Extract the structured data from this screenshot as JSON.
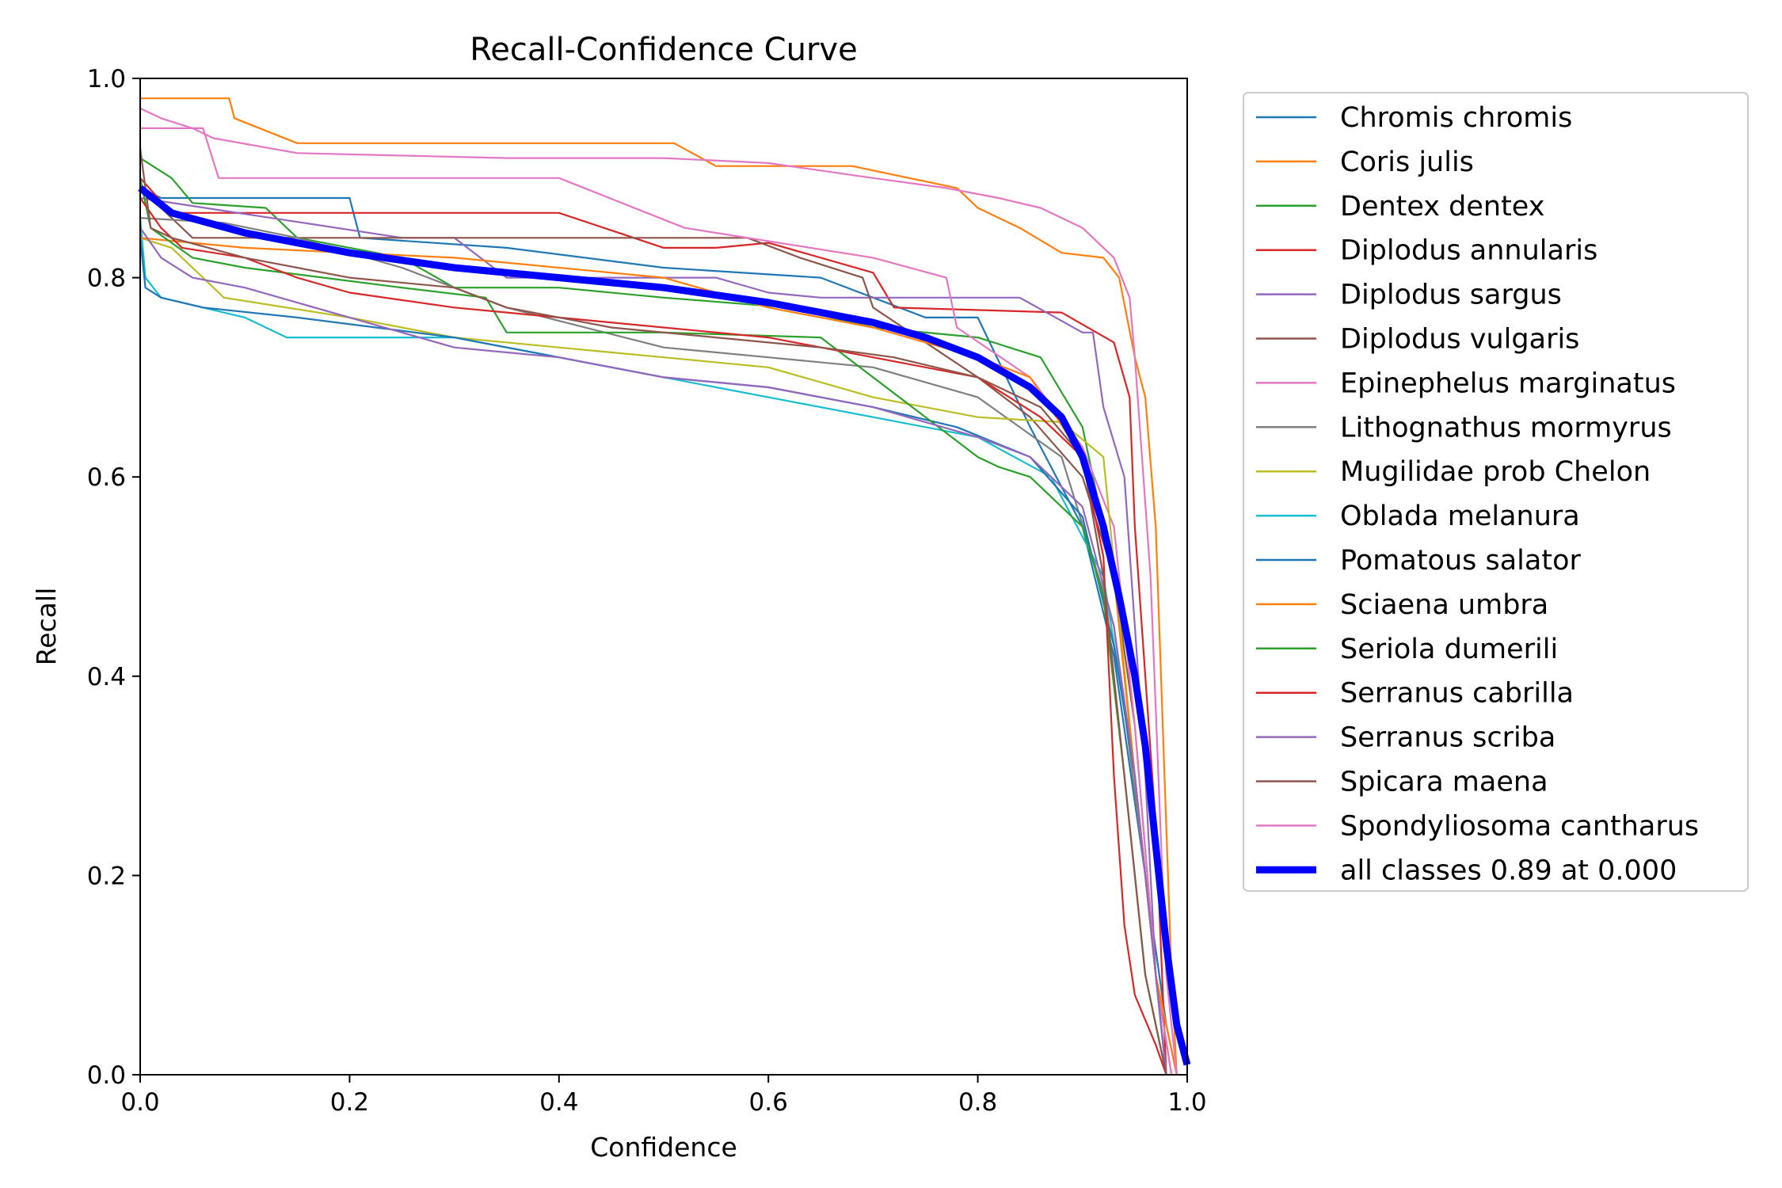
{
  "chart_data": {
    "type": "line",
    "title": "Recall-Confidence Curve",
    "xlabel": "Confidence",
    "ylabel": "Recall",
    "xlim": [
      0,
      1
    ],
    "ylim": [
      0,
      1
    ],
    "xticks": [
      "0.0",
      "0.2",
      "0.4",
      "0.6",
      "0.8",
      "1.0"
    ],
    "yticks": [
      "0.0",
      "0.2",
      "0.4",
      "0.6",
      "0.8",
      "1.0"
    ],
    "grid": false,
    "legend_position": "outside-right-top",
    "series": [
      {
        "name": "Chromis chromis",
        "color": "#1f77b4",
        "x": [
          0,
          0.02,
          0.2,
          0.21,
          0.35,
          0.5,
          0.65,
          0.75,
          0.8,
          0.85,
          0.9,
          0.93,
          0.96,
          0.98,
          0.99
        ],
        "y": [
          0.89,
          0.88,
          0.88,
          0.84,
          0.83,
          0.81,
          0.8,
          0.76,
          0.76,
          0.65,
          0.55,
          0.42,
          0.2,
          0.05,
          0.0
        ]
      },
      {
        "name": "Coris julis",
        "color": "#ff7f0e",
        "x": [
          0,
          0.085,
          0.09,
          0.15,
          0.3,
          0.51,
          0.55,
          0.68,
          0.78,
          0.8,
          0.84,
          0.88,
          0.92,
          0.935,
          0.95,
          0.96,
          0.97,
          0.985,
          0.99
        ],
        "y": [
          0.98,
          0.98,
          0.96,
          0.935,
          0.935,
          0.935,
          0.912,
          0.912,
          0.89,
          0.87,
          0.85,
          0.825,
          0.82,
          0.8,
          0.72,
          0.68,
          0.55,
          0.1,
          0.0
        ]
      },
      {
        "name": "Dentex dentex",
        "color": "#2ca02c",
        "x": [
          0,
          0.03,
          0.05,
          0.12,
          0.15,
          0.25,
          0.3,
          0.4,
          0.5,
          0.62,
          0.7,
          0.8,
          0.86,
          0.9,
          0.93,
          0.95,
          0.97,
          0.98
        ],
        "y": [
          0.92,
          0.9,
          0.875,
          0.87,
          0.84,
          0.82,
          0.79,
          0.79,
          0.78,
          0.77,
          0.75,
          0.74,
          0.72,
          0.65,
          0.5,
          0.3,
          0.1,
          0.0
        ]
      },
      {
        "name": "Diplodus annularis",
        "color": "#d62728",
        "x": [
          0,
          0.03,
          0.2,
          0.4,
          0.5,
          0.55,
          0.6,
          0.7,
          0.72,
          0.88,
          0.93,
          0.945,
          0.95,
          0.97,
          0.98
        ],
        "y": [
          0.9,
          0.865,
          0.865,
          0.865,
          0.83,
          0.83,
          0.835,
          0.805,
          0.77,
          0.765,
          0.735,
          0.68,
          0.55,
          0.25,
          0.0
        ]
      },
      {
        "name": "Diplodus sargus",
        "color": "#9467bd",
        "x": [
          0,
          0.25,
          0.3,
          0.35,
          0.5,
          0.55,
          0.6,
          0.65,
          0.7,
          0.84,
          0.9,
          0.91,
          0.92,
          0.94,
          0.96,
          0.97,
          0.98
        ],
        "y": [
          0.88,
          0.84,
          0.84,
          0.8,
          0.8,
          0.8,
          0.785,
          0.78,
          0.78,
          0.78,
          0.745,
          0.745,
          0.67,
          0.6,
          0.3,
          0.1,
          0.0
        ]
      },
      {
        "name": "Diplodus vulgaris",
        "color": "#8c564b",
        "x": [
          0,
          0.05,
          0.2,
          0.3,
          0.45,
          0.58,
          0.63,
          0.69,
          0.7,
          0.8,
          0.85,
          0.9,
          0.93,
          0.95,
          0.97,
          0.985
        ],
        "y": [
          0.89,
          0.84,
          0.84,
          0.84,
          0.84,
          0.84,
          0.82,
          0.8,
          0.77,
          0.7,
          0.66,
          0.6,
          0.5,
          0.35,
          0.1,
          0.0
        ]
      },
      {
        "name": "Epinephelus marginatus",
        "color": "#e377c2",
        "x": [
          0,
          0.06,
          0.075,
          0.4,
          0.52,
          0.7,
          0.77,
          0.78,
          0.85,
          0.9,
          0.93,
          0.95,
          0.97,
          0.985
        ],
        "y": [
          0.95,
          0.95,
          0.9,
          0.9,
          0.85,
          0.82,
          0.8,
          0.75,
          0.7,
          0.63,
          0.55,
          0.35,
          0.1,
          0.0
        ]
      },
      {
        "name": "Lithognathus mormyrus",
        "color": "#7f7f7f",
        "x": [
          0,
          0.08,
          0.15,
          0.25,
          0.35,
          0.5,
          0.6,
          0.7,
          0.8,
          0.88,
          0.93,
          0.96,
          0.98
        ],
        "y": [
          0.86,
          0.855,
          0.84,
          0.81,
          0.77,
          0.73,
          0.72,
          0.71,
          0.68,
          0.62,
          0.45,
          0.2,
          0.0
        ]
      },
      {
        "name": "Mugilidae prob Chelon",
        "color": "#bcbd22",
        "x": [
          0,
          0.03,
          0.08,
          0.2,
          0.3,
          0.4,
          0.5,
          0.6,
          0.7,
          0.8,
          0.88,
          0.92,
          0.95,
          0.97,
          0.98
        ],
        "y": [
          0.84,
          0.83,
          0.78,
          0.76,
          0.74,
          0.73,
          0.72,
          0.71,
          0.68,
          0.66,
          0.655,
          0.62,
          0.3,
          0.1,
          0.0
        ]
      },
      {
        "name": "Oblada melanura",
        "color": "#17becf",
        "x": [
          0,
          0.005,
          0.02,
          0.06,
          0.1,
          0.14,
          0.3,
          0.4,
          0.55,
          0.6,
          0.7,
          0.8,
          0.87,
          0.92,
          0.95,
          0.97,
          0.98
        ],
        "y": [
          0.86,
          0.8,
          0.78,
          0.77,
          0.76,
          0.74,
          0.74,
          0.72,
          0.69,
          0.68,
          0.66,
          0.64,
          0.6,
          0.5,
          0.3,
          0.1,
          0.0
        ]
      },
      {
        "name": "Pomatous salator",
        "color": "#1f77b4",
        "x": [
          0,
          0.005,
          0.02,
          0.06,
          0.15,
          0.3,
          0.4,
          0.5,
          0.6,
          0.7,
          0.78,
          0.85,
          0.9,
          0.93,
          0.95,
          0.97,
          0.98
        ],
        "y": [
          0.84,
          0.79,
          0.78,
          0.77,
          0.76,
          0.74,
          0.72,
          0.7,
          0.69,
          0.67,
          0.65,
          0.62,
          0.56,
          0.43,
          0.3,
          0.1,
          0.0
        ]
      },
      {
        "name": "Sciaena umbra",
        "color": "#ff7f0e",
        "x": [
          0,
          0.1,
          0.3,
          0.5,
          0.6,
          0.7,
          0.8,
          0.85,
          0.9,
          0.93,
          0.95,
          0.97,
          0.99
        ],
        "y": [
          0.84,
          0.83,
          0.82,
          0.8,
          0.77,
          0.75,
          0.72,
          0.7,
          0.62,
          0.5,
          0.3,
          0.1,
          0.0
        ]
      },
      {
        "name": "Seriola dumerili",
        "color": "#2ca02c",
        "x": [
          0,
          0.01,
          0.05,
          0.1,
          0.25,
          0.33,
          0.35,
          0.5,
          0.65,
          0.8,
          0.82,
          0.85,
          0.9,
          0.92,
          0.94,
          0.96,
          0.98
        ],
        "y": [
          0.9,
          0.85,
          0.82,
          0.81,
          0.79,
          0.78,
          0.745,
          0.745,
          0.74,
          0.62,
          0.61,
          0.6,
          0.55,
          0.48,
          0.3,
          0.1,
          0.0
        ]
      },
      {
        "name": "Serranus cabrilla",
        "color": "#d62728",
        "x": [
          0,
          0.02,
          0.04,
          0.1,
          0.15,
          0.2,
          0.3,
          0.4,
          0.5,
          0.6,
          0.7,
          0.8,
          0.86,
          0.9,
          0.92,
          0.93,
          0.94,
          0.95,
          0.97,
          0.98
        ],
        "y": [
          0.88,
          0.85,
          0.83,
          0.82,
          0.8,
          0.785,
          0.77,
          0.76,
          0.75,
          0.74,
          0.72,
          0.7,
          0.66,
          0.62,
          0.52,
          0.3,
          0.15,
          0.08,
          0.03,
          0.0
        ]
      },
      {
        "name": "Serranus scriba",
        "color": "#9467bd",
        "x": [
          0,
          0.02,
          0.05,
          0.1,
          0.2,
          0.3,
          0.4,
          0.5,
          0.6,
          0.7,
          0.8,
          0.85,
          0.9,
          0.93,
          0.95,
          0.97,
          0.98
        ],
        "y": [
          0.85,
          0.82,
          0.8,
          0.79,
          0.76,
          0.73,
          0.72,
          0.7,
          0.69,
          0.67,
          0.64,
          0.62,
          0.57,
          0.45,
          0.3,
          0.1,
          0.0
        ]
      },
      {
        "name": "Spicara maena",
        "color": "#8c564b",
        "x": [
          0,
          0.01,
          0.03,
          0.1,
          0.2,
          0.3,
          0.35,
          0.45,
          0.55,
          0.65,
          0.72,
          0.8,
          0.86,
          0.9,
          0.92,
          0.94,
          0.96,
          0.98
        ],
        "y": [
          0.93,
          0.85,
          0.84,
          0.82,
          0.8,
          0.79,
          0.77,
          0.75,
          0.74,
          0.73,
          0.72,
          0.7,
          0.67,
          0.62,
          0.5,
          0.3,
          0.1,
          0.0
        ]
      },
      {
        "name": "Spondyliosoma cantharus",
        "color": "#e377c2",
        "x": [
          0,
          0.02,
          0.05,
          0.07,
          0.15,
          0.35,
          0.5,
          0.6,
          0.7,
          0.77,
          0.82,
          0.86,
          0.9,
          0.93,
          0.945,
          0.95,
          0.965,
          0.98,
          0.99
        ],
        "y": [
          0.97,
          0.96,
          0.95,
          0.94,
          0.925,
          0.92,
          0.92,
          0.915,
          0.9,
          0.89,
          0.88,
          0.87,
          0.85,
          0.82,
          0.78,
          0.72,
          0.5,
          0.1,
          0.0
        ]
      },
      {
        "name": "all classes 0.89 at 0.000",
        "color": "#0000ff",
        "bold": true,
        "x": [
          0,
          0.03,
          0.1,
          0.2,
          0.3,
          0.4,
          0.5,
          0.6,
          0.7,
          0.75,
          0.8,
          0.85,
          0.88,
          0.9,
          0.92,
          0.935,
          0.95,
          0.96,
          0.97,
          0.98,
          0.99,
          1.0
        ],
        "y": [
          0.89,
          0.865,
          0.845,
          0.825,
          0.81,
          0.8,
          0.79,
          0.775,
          0.755,
          0.74,
          0.72,
          0.69,
          0.66,
          0.62,
          0.55,
          0.48,
          0.4,
          0.33,
          0.23,
          0.13,
          0.05,
          0.01
        ]
      }
    ]
  }
}
